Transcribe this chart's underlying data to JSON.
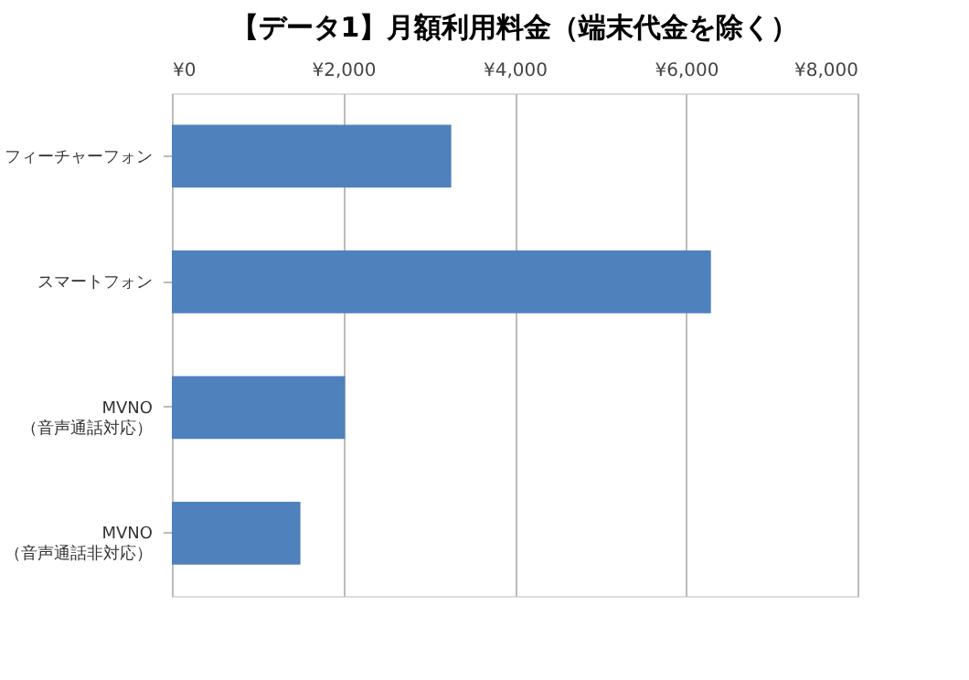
{
  "chart_data": {
    "type": "bar",
    "orientation": "horizontal",
    "title": "【データ1】月額利用料金（端末代金を除く）",
    "categories": [
      "フィーチャーフォン",
      "スマートフォン",
      "MVNO\n（音声通話対応）",
      "MVNO\n（音声通話非対応）"
    ],
    "values": [
      3260,
      6290,
      2020,
      1500
    ],
    "color": "#4f81bd",
    "xlim": [
      0,
      8000
    ],
    "xticks": [
      {
        "value": 0,
        "label": "¥0"
      },
      {
        "value": 2000,
        "label": "¥2,000"
      },
      {
        "value": 4000,
        "label": "¥4,000"
      },
      {
        "value": 6000,
        "label": "¥6,000"
      },
      {
        "value": 8000,
        "label": "¥8,000"
      }
    ],
    "grid": "x"
  }
}
